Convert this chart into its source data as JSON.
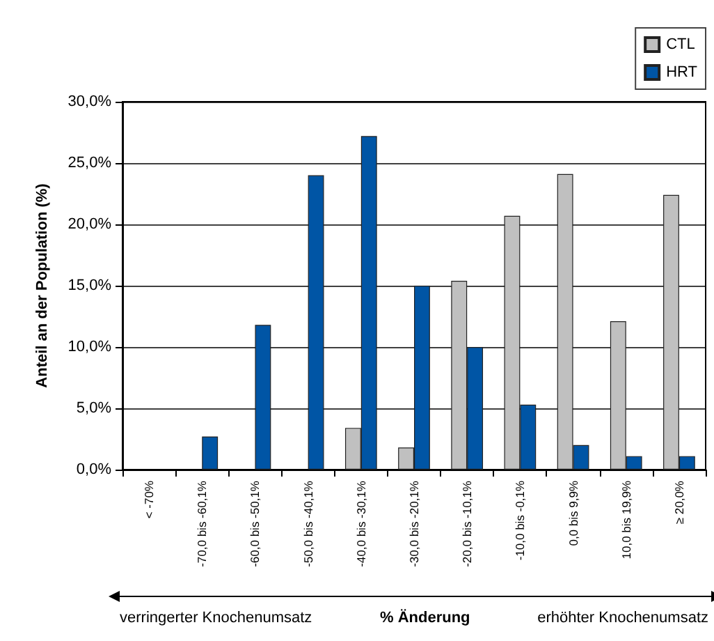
{
  "chart_data": {
    "type": "bar",
    "ylabel": "Anteil an der Population (%)",
    "xlabel": "% Änderung",
    "categories": [
      "< -70%",
      "-70,0 bis -60,1%",
      "-60,0 bis -50,1%",
      "-50,0 bis -40,1%",
      "-40,0 bis -30,1%",
      "-30,0 bis -20,1%",
      "-20,0 bis -10,1%",
      "-10,0 bis -0,1%",
      "0,0 bis 9,9%",
      "10,0 bis 19,9%",
      "≥ 20,0%"
    ],
    "series": [
      {
        "name": "CTL",
        "color": "#c0c0c0",
        "values": [
          0,
          0,
          0,
          0,
          3.4,
          1.8,
          15.4,
          20.7,
          24.1,
          12.1,
          22.4
        ]
      },
      {
        "name": "HRT",
        "color": "#0055a5",
        "values": [
          0,
          2.7,
          11.8,
          24.0,
          27.2,
          15.0,
          10.0,
          5.3,
          2.0,
          1.1,
          1.1
        ]
      }
    ],
    "ylim": [
      0,
      30
    ],
    "yticks": [
      {
        "value": 0,
        "label": "0,0%"
      },
      {
        "value": 5,
        "label": "5,0%"
      },
      {
        "value": 10,
        "label": "10,0%"
      },
      {
        "value": 15,
        "label": "15,0%"
      },
      {
        "value": 20,
        "label": "20,0%"
      },
      {
        "value": 25,
        "label": "25,0%"
      },
      {
        "value": 30,
        "label": "30,0%"
      }
    ],
    "grid": "y",
    "legend": "top right",
    "annotations": [
      "verringerter Knochenumsatz",
      "erhöhter Knochenumsatz"
    ]
  }
}
